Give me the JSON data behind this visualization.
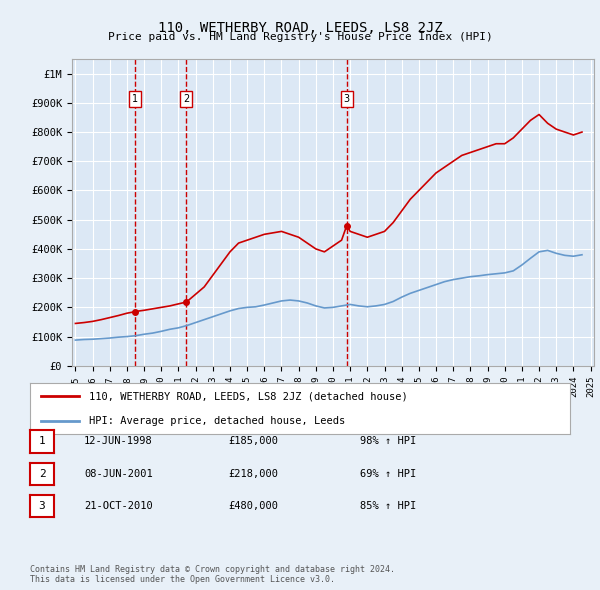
{
  "title": "110, WETHERBY ROAD, LEEDS, LS8 2JZ",
  "subtitle": "Price paid vs. HM Land Registry's House Price Index (HPI)",
  "background_color": "#e8f0f8",
  "plot_bg_color": "#dce8f5",
  "ylim": [
    0,
    1050000
  ],
  "yticks": [
    0,
    100000,
    200000,
    300000,
    400000,
    500000,
    600000,
    700000,
    800000,
    900000,
    1000000
  ],
  "ytick_labels": [
    "£0",
    "£100K",
    "£200K",
    "£300K",
    "£400K",
    "£500K",
    "£600K",
    "£700K",
    "£800K",
    "£900K",
    "£1M"
  ],
  "x_start_year": 1995,
  "x_end_year": 2025,
  "red_line_label": "110, WETHERBY ROAD, LEEDS, LS8 2JZ (detached house)",
  "blue_line_label": "HPI: Average price, detached house, Leeds",
  "sales": [
    {
      "id": 1,
      "date": "12-JUN-1998",
      "year": 1998.45,
      "price": 185000,
      "pct": "98%",
      "dir": "↑"
    },
    {
      "id": 2,
      "date": "08-JUN-2001",
      "year": 2001.45,
      "price": 218000,
      "pct": "69%",
      "dir": "↑"
    },
    {
      "id": 3,
      "date": "21-OCT-2010",
      "year": 2010.8,
      "price": 480000,
      "pct": "85%",
      "dir": "↑"
    }
  ],
  "footer": "Contains HM Land Registry data © Crown copyright and database right 2024.\nThis data is licensed under the Open Government Licence v3.0.",
  "red_line_data": {
    "x": [
      1995.0,
      1995.5,
      1996.0,
      1996.5,
      1997.0,
      1997.5,
      1998.0,
      1998.45,
      1998.5,
      1999.0,
      1999.5,
      2000.0,
      2000.5,
      2001.0,
      2001.45,
      2001.5,
      2002.0,
      2002.5,
      2003.0,
      2003.5,
      2004.0,
      2004.5,
      2005.0,
      2005.5,
      2006.0,
      2006.5,
      2007.0,
      2007.5,
      2008.0,
      2008.5,
      2009.0,
      2009.5,
      2010.0,
      2010.5,
      2010.8,
      2011.0,
      2011.5,
      2012.0,
      2012.5,
      2013.0,
      2013.5,
      2014.0,
      2014.5,
      2015.0,
      2015.5,
      2016.0,
      2016.5,
      2017.0,
      2017.5,
      2018.0,
      2018.5,
      2019.0,
      2019.5,
      2020.0,
      2020.5,
      2021.0,
      2021.5,
      2022.0,
      2022.5,
      2023.0,
      2023.5,
      2024.0,
      2024.5
    ],
    "y": [
      145000,
      148000,
      152000,
      158000,
      165000,
      172000,
      180000,
      185000,
      186000,
      190000,
      195000,
      200000,
      205000,
      212000,
      218000,
      220000,
      245000,
      270000,
      310000,
      350000,
      390000,
      420000,
      430000,
      440000,
      450000,
      455000,
      460000,
      450000,
      440000,
      420000,
      400000,
      390000,
      410000,
      430000,
      480000,
      460000,
      450000,
      440000,
      450000,
      460000,
      490000,
      530000,
      570000,
      600000,
      630000,
      660000,
      680000,
      700000,
      720000,
      730000,
      740000,
      750000,
      760000,
      760000,
      780000,
      810000,
      840000,
      860000,
      830000,
      810000,
      800000,
      790000,
      800000
    ]
  },
  "blue_line_data": {
    "x": [
      1995.0,
      1995.5,
      1996.0,
      1996.5,
      1997.0,
      1997.5,
      1998.0,
      1998.5,
      1999.0,
      1999.5,
      2000.0,
      2000.5,
      2001.0,
      2001.5,
      2002.0,
      2002.5,
      2003.0,
      2003.5,
      2004.0,
      2004.5,
      2005.0,
      2005.5,
      2006.0,
      2006.5,
      2007.0,
      2007.5,
      2008.0,
      2008.5,
      2009.0,
      2009.5,
      2010.0,
      2010.5,
      2011.0,
      2011.5,
      2012.0,
      2012.5,
      2013.0,
      2013.5,
      2014.0,
      2014.5,
      2015.0,
      2015.5,
      2016.0,
      2016.5,
      2017.0,
      2017.5,
      2018.0,
      2018.5,
      2019.0,
      2019.5,
      2020.0,
      2020.5,
      2021.0,
      2021.5,
      2022.0,
      2022.5,
      2023.0,
      2023.5,
      2024.0,
      2024.5
    ],
    "y": [
      88000,
      90000,
      91000,
      93000,
      95000,
      98000,
      100000,
      103000,
      108000,
      112000,
      118000,
      125000,
      130000,
      138000,
      148000,
      158000,
      168000,
      178000,
      188000,
      196000,
      200000,
      202000,
      208000,
      215000,
      222000,
      225000,
      222000,
      215000,
      205000,
      198000,
      200000,
      205000,
      210000,
      205000,
      202000,
      205000,
      210000,
      220000,
      235000,
      248000,
      258000,
      268000,
      278000,
      288000,
      295000,
      300000,
      305000,
      308000,
      312000,
      315000,
      318000,
      325000,
      345000,
      368000,
      390000,
      395000,
      385000,
      378000,
      375000,
      380000
    ]
  }
}
